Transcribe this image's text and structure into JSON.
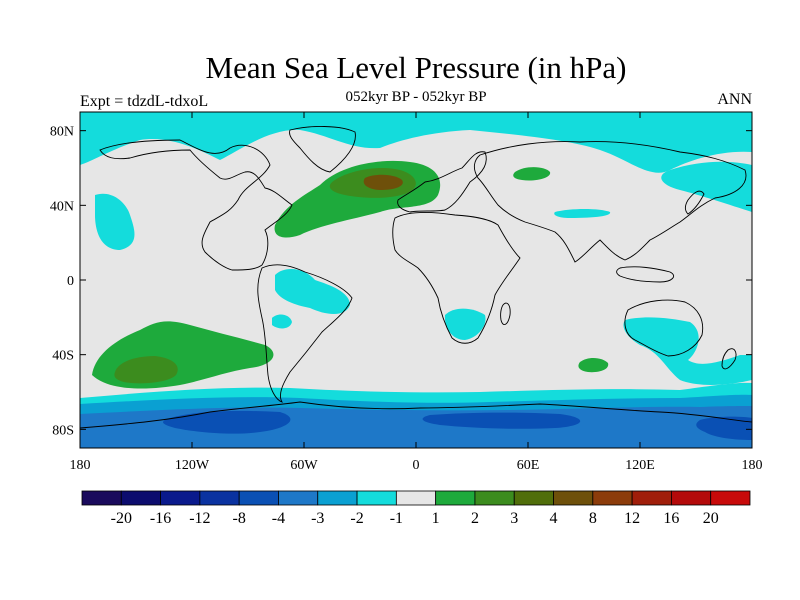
{
  "header": {
    "title": "Mean Sea Level Pressure (in hPa)",
    "subtitle": "052kyr BP - 052kyr BP",
    "left_label": "Expt = tdzdL-tdxoL",
    "right_label": "ANN"
  },
  "map": {
    "projection": "cylindrical-equidistant",
    "lon_range": [
      -180,
      180
    ],
    "lat_range": [
      -90,
      90
    ],
    "lat_ticks": [
      {
        "value": 80,
        "label": "80N"
      },
      {
        "value": 40,
        "label": "40N"
      },
      {
        "value": 0,
        "label": "0"
      },
      {
        "value": -40,
        "label": "40S"
      },
      {
        "value": -80,
        "label": "80S"
      }
    ],
    "lon_ticks": [
      {
        "value": -180,
        "label": "180"
      },
      {
        "value": -120,
        "label": "120W"
      },
      {
        "value": -60,
        "label": "60W"
      },
      {
        "value": 0,
        "label": "0"
      },
      {
        "value": 60,
        "label": "60E"
      },
      {
        "value": 120,
        "label": "120E"
      },
      {
        "value": 180,
        "label": "180"
      }
    ],
    "background_color": "#e6e6e6"
  },
  "colorbar": {
    "colors": [
      "#1a0a5c",
      "#0c0c6e",
      "#0a1a8c",
      "#0a32a0",
      "#0a50b4",
      "#1e78c8",
      "#0aa0d2",
      "#14dcdc",
      "#e6e6e6",
      "#1eaa3c",
      "#3c8c1e",
      "#506e0a",
      "#6e500a",
      "#8c3c0a",
      "#a01e0a",
      "#b40a0a",
      "#c80a0a"
    ],
    "labels": [
      "-20",
      "-16",
      "-12",
      "-8",
      "-4",
      "-3",
      "-2",
      "-1",
      "1",
      "2",
      "3",
      "4",
      "8",
      "12",
      "16",
      "20"
    ]
  },
  "chart_data": {
    "type": "heatmap",
    "title": "Mean Sea Level Pressure (in hPa)",
    "subtitle": "052kyr BP - 052kyr BP",
    "xlim": [
      -180,
      180
    ],
    "ylim": [
      -90,
      90
    ],
    "levels": [
      -20,
      -16,
      -12,
      -8,
      -4,
      -3,
      -2,
      -1,
      1,
      2,
      3,
      4,
      8,
      12,
      16,
      20
    ],
    "features": [
      {
        "region": "North Atlantic",
        "center": [
          -20,
          52
        ],
        "range": [
          2,
          4
        ]
      },
      {
        "region": "South Pacific",
        "center": [
          -140,
          -43
        ],
        "range": [
          2,
          4
        ]
      },
      {
        "region": "Southern Ocean",
        "range": [
          -4,
          -1
        ]
      },
      {
        "region": "Antarctica",
        "range": [
          -8,
          -4
        ]
      },
      {
        "region": "Arctic",
        "range": [
          -2,
          -1
        ]
      },
      {
        "region": "Southern Africa",
        "range": [
          -2,
          -1
        ]
      },
      {
        "region": "Eastern Indian Ocean",
        "center": [
          95,
          -38
        ],
        "range": [
          1,
          2
        ]
      }
    ]
  }
}
